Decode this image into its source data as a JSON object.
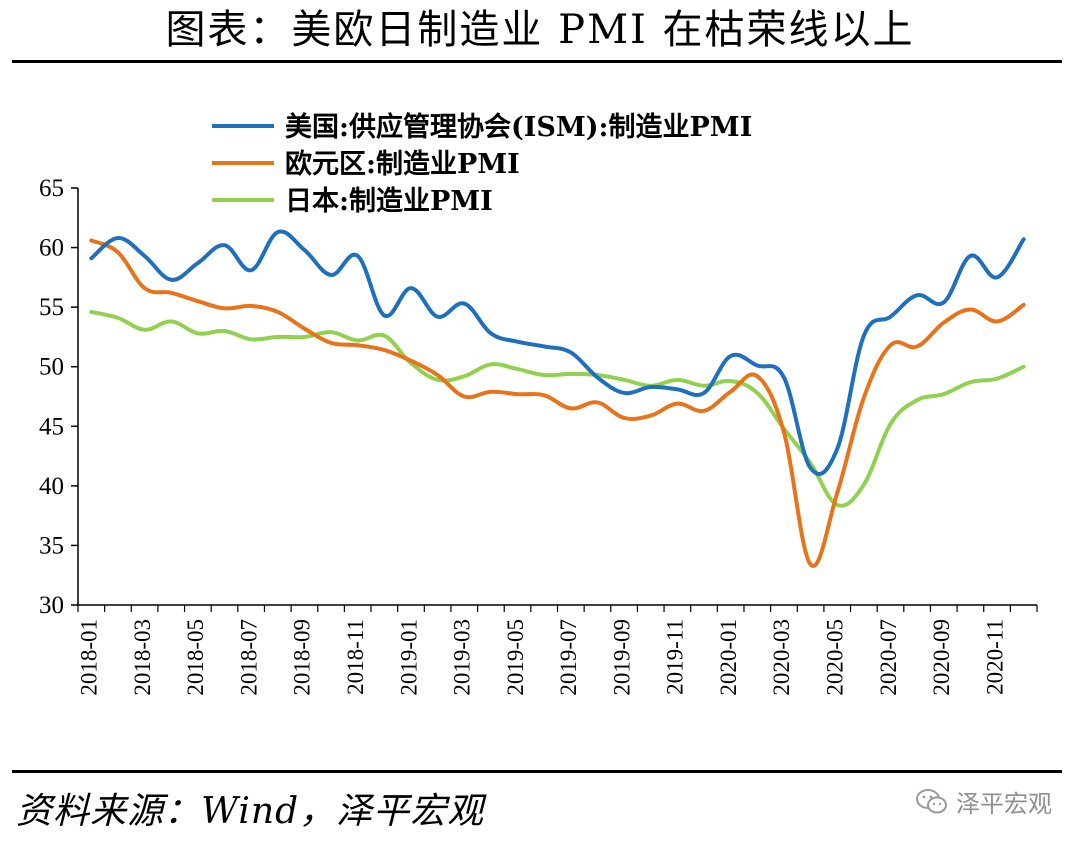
{
  "title": "图表：美欧日制造业 PMI 在枯荣线以上",
  "source": "资料来源：Wind，泽平宏观",
  "watermark": "泽平宏观",
  "chart_data": {
    "type": "line",
    "title": "",
    "xlabel": "",
    "ylabel": "",
    "ylim": [
      30,
      65
    ],
    "yticks": [
      30,
      35,
      40,
      45,
      50,
      55,
      60,
      65
    ],
    "x_tick_labels": [
      "2018-01",
      "2018-03",
      "2018-05",
      "2018-07",
      "2018-09",
      "2018-11",
      "2019-01",
      "2019-03",
      "2019-05",
      "2019-07",
      "2019-09",
      "2019-11",
      "2020-01",
      "2020-03",
      "2020-05",
      "2020-07",
      "2020-09",
      "2020-11"
    ],
    "categories": [
      "2018-01",
      "2018-02",
      "2018-03",
      "2018-04",
      "2018-05",
      "2018-06",
      "2018-07",
      "2018-08",
      "2018-09",
      "2018-10",
      "2018-11",
      "2018-12",
      "2019-01",
      "2019-02",
      "2019-03",
      "2019-04",
      "2019-05",
      "2019-06",
      "2019-07",
      "2019-08",
      "2019-09",
      "2019-10",
      "2019-11",
      "2019-12",
      "2020-01",
      "2020-02",
      "2020-03",
      "2020-04",
      "2020-05",
      "2020-06",
      "2020-07",
      "2020-08",
      "2020-09",
      "2020-10",
      "2020-11",
      "2020-12"
    ],
    "grid": false,
    "legend_position": "top",
    "series": [
      {
        "name": "美国:供应管理协会(ISM):制造业PMI",
        "color": "#1f6fbf",
        "values": [
          59.1,
          60.8,
          59.3,
          57.3,
          58.7,
          60.2,
          58.1,
          61.3,
          59.8,
          57.7,
          59.3,
          54.3,
          56.6,
          54.2,
          55.3,
          52.8,
          52.1,
          51.7,
          51.2,
          49.1,
          47.8,
          48.3,
          48.1,
          47.8,
          50.9,
          50.1,
          49.1,
          41.5,
          43.1,
          52.6,
          54.2,
          56.0,
          55.4,
          59.3,
          57.5,
          60.7
        ]
      },
      {
        "name": "欧元区:制造业PMI",
        "color": "#e8731a",
        "values": [
          60.6,
          59.6,
          56.6,
          56.2,
          55.5,
          54.9,
          55.1,
          54.6,
          53.2,
          52.0,
          51.8,
          51.4,
          50.5,
          49.3,
          47.5,
          47.9,
          47.7,
          47.6,
          46.5,
          47.0,
          45.7,
          45.9,
          46.9,
          46.3,
          47.9,
          49.2,
          44.5,
          33.4,
          39.4,
          47.4,
          51.8,
          51.7,
          53.7,
          54.8,
          53.8,
          55.2
        ]
      },
      {
        "name": "日本:制造业PMI",
        "color": "#92d050",
        "values": [
          54.6,
          54.1,
          53.1,
          53.8,
          52.8,
          53.0,
          52.3,
          52.5,
          52.5,
          52.9,
          52.2,
          52.6,
          50.3,
          48.9,
          49.2,
          50.2,
          49.8,
          49.3,
          49.4,
          49.3,
          48.9,
          48.4,
          48.9,
          48.4,
          48.8,
          47.8,
          44.8,
          41.9,
          38.4,
          40.1,
          45.2,
          47.2,
          47.7,
          48.7,
          49.0,
          50.0
        ]
      }
    ]
  }
}
